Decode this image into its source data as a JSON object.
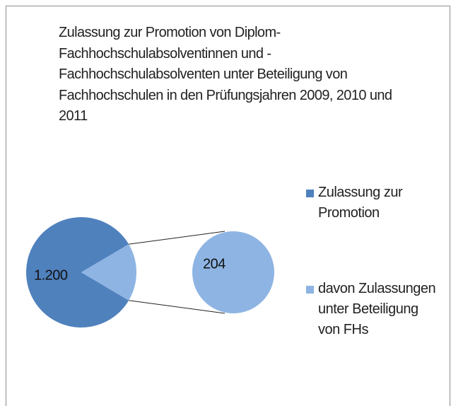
{
  "chart_data": {
    "type": "pie-of-pie",
    "title": "Zulassung zur Promotion von Diplom-Fachhochschulabsolventinnen und -Fachhochschulabsolventen unter Beteiligung von Fachhochschulen in den Prüfungsjahren 2009, 2010 und 2011",
    "categories": [
      "Zulassung zur Promotion",
      "davon Zulassungen unter Beteiligung von FHs"
    ],
    "values": [
      1200,
      204
    ],
    "value_labels": [
      "1.200",
      "204"
    ],
    "colors": [
      "#4f81bd",
      "#8eb4e3"
    ],
    "legend": "right"
  }
}
